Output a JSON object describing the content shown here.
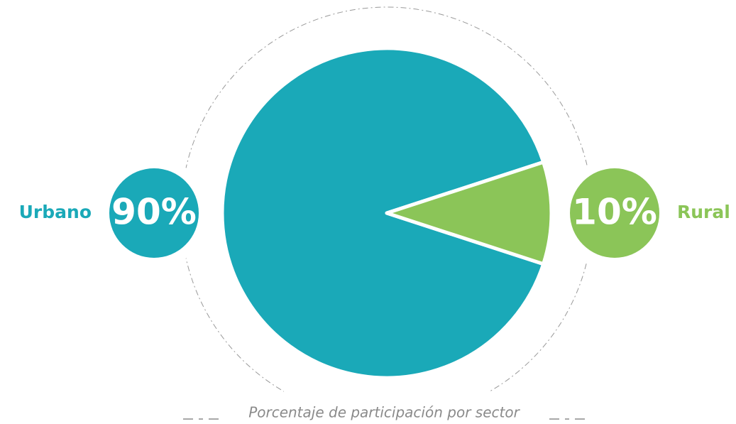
{
  "chart_data": {
    "type": "pie",
    "categories": [
      "Urbano",
      "Rural"
    ],
    "values": [
      90,
      10
    ],
    "value_labels": [
      "90%",
      "10%"
    ],
    "colors": [
      "#1aa9b8",
      "#8bc558"
    ],
    "caption": "Porcentaje de participación por sector"
  }
}
